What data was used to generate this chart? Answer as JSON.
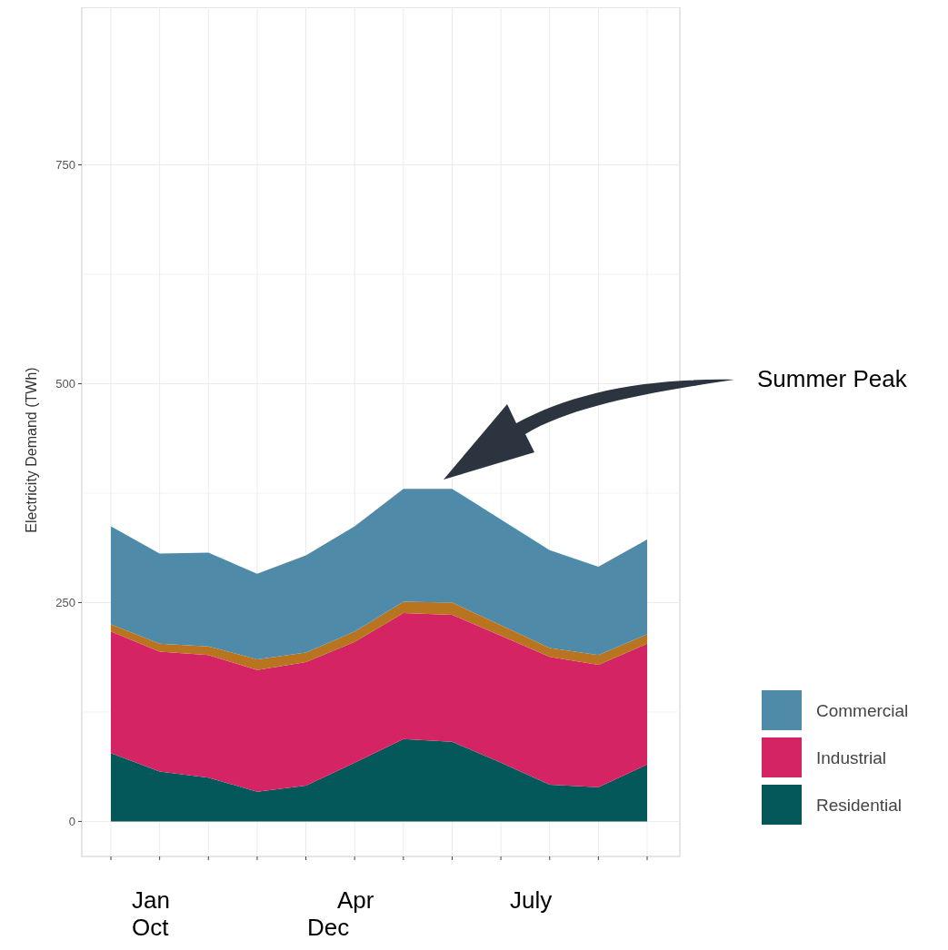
{
  "chart_data": {
    "type": "area",
    "stacked": true,
    "ylabel": "Electricity Demand (TWh)",
    "categories": [
      null,
      null,
      null,
      null,
      null,
      null,
      null,
      null,
      null,
      null,
      null,
      null
    ],
    "series": [
      {
        "name": "Residential",
        "color": "#04585a",
        "values": [
          78,
          57,
          50,
          34,
          41,
          67,
          94,
          91,
          67,
          42,
          39,
          65
        ]
      },
      {
        "name": "Industrial",
        "color": "#d42464",
        "values": [
          139,
          137,
          140,
          139,
          141,
          138,
          144,
          145,
          145,
          146,
          140,
          138
        ]
      },
      {
        "color": "#b8741f",
        "values": [
          8,
          9,
          10,
          12,
          11,
          12,
          13,
          14,
          12,
          10,
          11,
          11
        ]
      },
      {
        "name": "Commercial",
        "color": "#4f8aa8",
        "values": [
          112,
          103,
          107,
          98,
          111,
          120,
          129,
          130,
          121,
          112,
          101,
          108
        ]
      }
    ],
    "ylim": [
      -40,
      930
    ],
    "yticks": [
      0,
      250,
      500,
      750
    ],
    "grid": true,
    "legend": "right",
    "annotations": [
      "Summer Peak",
      "Jan",
      "Apr",
      "July",
      "Oct",
      "Dec"
    ]
  }
}
